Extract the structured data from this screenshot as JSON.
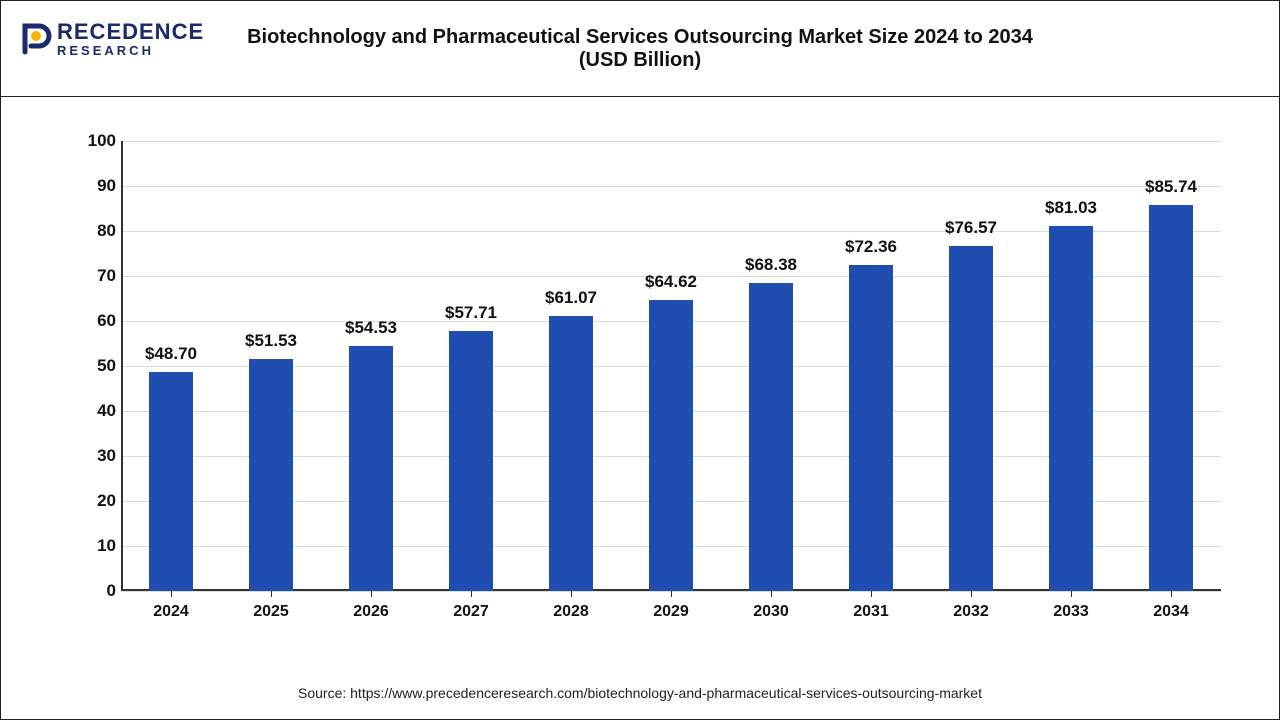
{
  "brand": {
    "name_top": "RECEDENCE",
    "name_bottom": "RESEARCH",
    "mark_stroke": "#1a2a6c",
    "mark_fill": "#f5b400"
  },
  "title": {
    "line1": "Biotechnology and Pharmaceutical Services Outsourcing Market Size 2024 to 2034",
    "line2": "(USD Billion)",
    "fontsize": 20
  },
  "chart": {
    "type": "bar",
    "categories": [
      "2024",
      "2025",
      "2026",
      "2027",
      "2028",
      "2029",
      "2030",
      "2031",
      "2032",
      "2033",
      "2034"
    ],
    "values": [
      48.7,
      51.53,
      54.53,
      57.71,
      61.07,
      64.62,
      68.38,
      72.36,
      76.57,
      81.03,
      85.74
    ],
    "value_labels": [
      "$48.70",
      "$51.53",
      "$54.53",
      "$57.71",
      "$61.07",
      "$64.62",
      "$68.38",
      "$72.36",
      "$76.57",
      "$81.03",
      "$85.74"
    ],
    "bar_color": "#1f4eb0",
    "background_color": "#ffffff",
    "grid_color": "#dcdcdc",
    "axis_color": "#333333",
    "ylim": [
      0,
      100
    ],
    "ytick_step": 10,
    "yticks": [
      0,
      10,
      20,
      30,
      40,
      50,
      60,
      70,
      80,
      90,
      100
    ],
    "bar_width_ratio": 0.44,
    "label_fontsize": 17,
    "tick_fontsize": 17,
    "x_tick_fontsize": 16
  },
  "source": {
    "text": "Source: https://www.precedenceresearch.com/biotechnology-and-pharmaceutical-services-outsourcing-market",
    "fontsize": 14
  }
}
